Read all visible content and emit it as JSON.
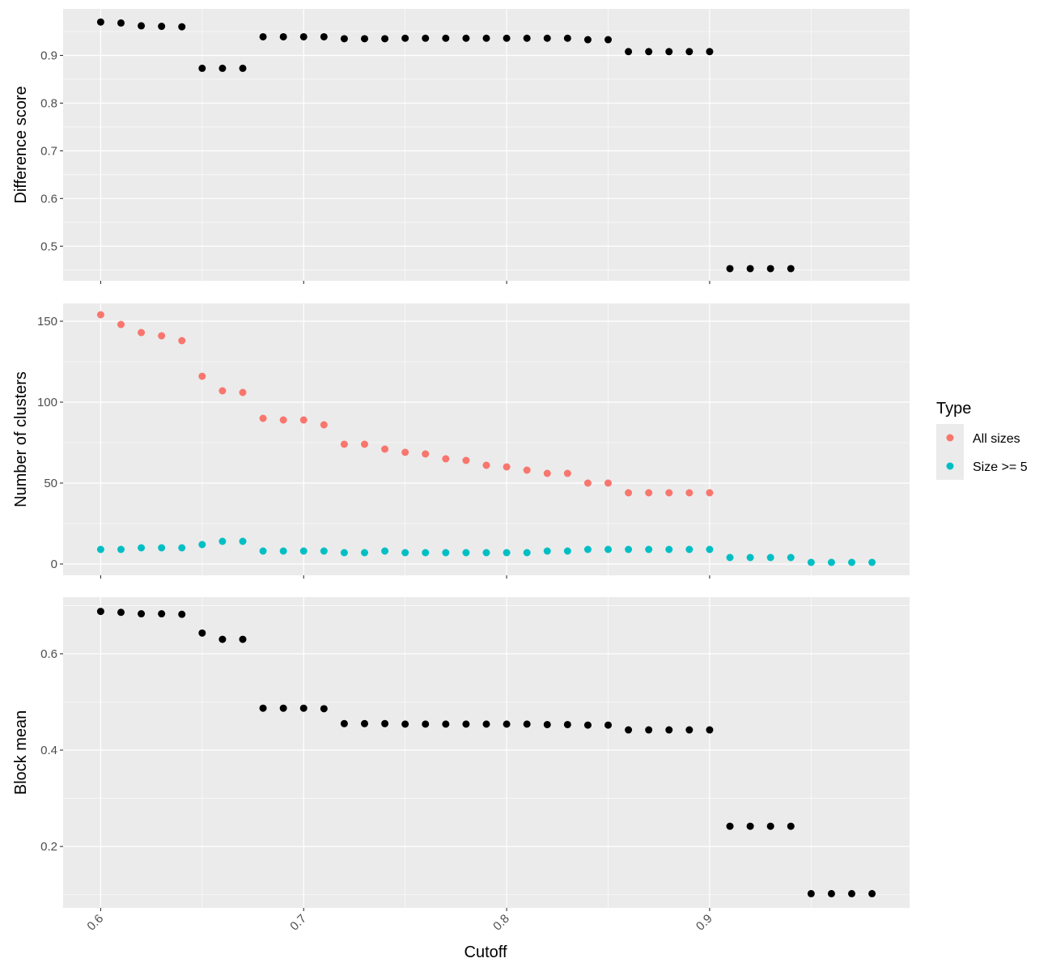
{
  "chart_data": {
    "type": "scatter",
    "xlabel": "Cutoff",
    "x_ticks": [
      "0.6",
      "0.7",
      "0.8",
      "0.9"
    ],
    "x_tick_values": [
      0.6,
      0.7,
      0.8,
      0.9
    ],
    "xlim": [
      0.5815,
      0.9985
    ],
    "grid": true,
    "legend": {
      "title": "Type",
      "position": "right",
      "entries": [
        {
          "label": "All sizes",
          "color": "#F8766D"
        },
        {
          "label": "Size >= 5",
          "color": "#00BFC4"
        }
      ]
    },
    "panels": [
      {
        "ylabel": "Difference score",
        "ylim": [
          0.4275,
          0.9975
        ],
        "y_ticks": [
          "0.5",
          "0.6",
          "0.7",
          "0.8",
          "0.9"
        ],
        "y_tick_values": [
          0.5,
          0.6,
          0.7,
          0.8,
          0.9
        ],
        "series": [
          {
            "color": "#000000",
            "x": [
              0.6,
              0.61,
              0.62,
              0.63,
              0.64,
              0.65,
              0.66,
              0.67,
              0.68,
              0.69,
              0.7,
              0.71,
              0.72,
              0.73,
              0.74,
              0.75,
              0.76,
              0.77,
              0.78,
              0.79,
              0.8,
              0.81,
              0.82,
              0.83,
              0.84,
              0.85,
              0.86,
              0.87,
              0.88,
              0.89,
              0.9,
              0.91,
              0.92,
              0.93,
              0.94
            ],
            "y": [
              0.97,
              0.968,
              0.962,
              0.961,
              0.96,
              0.873,
              0.873,
              0.873,
              0.939,
              0.939,
              0.939,
              0.939,
              0.935,
              0.935,
              0.935,
              0.936,
              0.936,
              0.936,
              0.936,
              0.936,
              0.936,
              0.936,
              0.936,
              0.936,
              0.933,
              0.933,
              0.908,
              0.908,
              0.908,
              0.908,
              0.908,
              0.453,
              0.453,
              0.453,
              0.453
            ]
          }
        ]
      },
      {
        "ylabel": "Number of clusters",
        "ylim": [
          -7,
          161
        ],
        "y_ticks": [
          "0",
          "50",
          "100",
          "150"
        ],
        "y_tick_values": [
          0,
          50,
          100,
          150
        ],
        "series": [
          {
            "name": "All sizes",
            "color": "#F8766D",
            "x": [
              0.6,
              0.61,
              0.62,
              0.63,
              0.64,
              0.65,
              0.66,
              0.67,
              0.68,
              0.69,
              0.7,
              0.71,
              0.72,
              0.73,
              0.74,
              0.75,
              0.76,
              0.77,
              0.78,
              0.79,
              0.8,
              0.81,
              0.82,
              0.83,
              0.84,
              0.85,
              0.86,
              0.87,
              0.88,
              0.89,
              0.9
            ],
            "y": [
              154,
              148,
              143,
              141,
              138,
              116,
              107,
              106,
              90,
              89,
              89,
              86,
              74,
              74,
              71,
              69,
              68,
              65,
              64,
              61,
              60,
              58,
              56,
              56,
              50,
              50,
              44,
              44,
              44,
              44,
              44
            ]
          },
          {
            "name": "Size >= 5",
            "color": "#00BFC4",
            "x": [
              0.6,
              0.61,
              0.62,
              0.63,
              0.64,
              0.65,
              0.66,
              0.67,
              0.68,
              0.69,
              0.7,
              0.71,
              0.72,
              0.73,
              0.74,
              0.75,
              0.76,
              0.77,
              0.78,
              0.79,
              0.8,
              0.81,
              0.82,
              0.83,
              0.84,
              0.85,
              0.86,
              0.87,
              0.88,
              0.89,
              0.9,
              0.91,
              0.92,
              0.93,
              0.94,
              0.95,
              0.96,
              0.97,
              0.98
            ],
            "y": [
              9,
              9,
              10,
              10,
              10,
              12,
              14,
              14,
              8,
              8,
              8,
              8,
              7,
              7,
              8,
              7,
              7,
              7,
              7,
              7,
              7,
              7,
              8,
              8,
              9,
              9,
              9,
              9,
              9,
              9,
              9,
              4,
              4,
              4,
              4,
              1,
              1,
              1,
              1
            ]
          }
        ]
      },
      {
        "ylabel": "Block mean",
        "ylim": [
          0.0725,
          0.7175
        ],
        "y_ticks": [
          "0.2",
          "0.4",
          "0.6"
        ],
        "y_tick_values": [
          0.2,
          0.4,
          0.6
        ],
        "series": [
          {
            "color": "#000000",
            "x": [
              0.6,
              0.61,
              0.62,
              0.63,
              0.64,
              0.65,
              0.66,
              0.67,
              0.68,
              0.69,
              0.7,
              0.71,
              0.72,
              0.73,
              0.74,
              0.75,
              0.76,
              0.77,
              0.78,
              0.79,
              0.8,
              0.81,
              0.82,
              0.83,
              0.84,
              0.85,
              0.86,
              0.87,
              0.88,
              0.89,
              0.9,
              0.91,
              0.92,
              0.93,
              0.94,
              0.95,
              0.96,
              0.97,
              0.98
            ],
            "y": [
              0.688,
              0.686,
              0.683,
              0.683,
              0.682,
              0.643,
              0.63,
              0.63,
              0.487,
              0.487,
              0.487,
              0.486,
              0.455,
              0.455,
              0.455,
              0.454,
              0.454,
              0.454,
              0.454,
              0.454,
              0.454,
              0.454,
              0.453,
              0.453,
              0.452,
              0.452,
              0.442,
              0.442,
              0.442,
              0.442,
              0.442,
              0.242,
              0.242,
              0.242,
              0.242,
              0.102,
              0.102,
              0.102,
              0.102
            ]
          }
        ]
      }
    ]
  }
}
